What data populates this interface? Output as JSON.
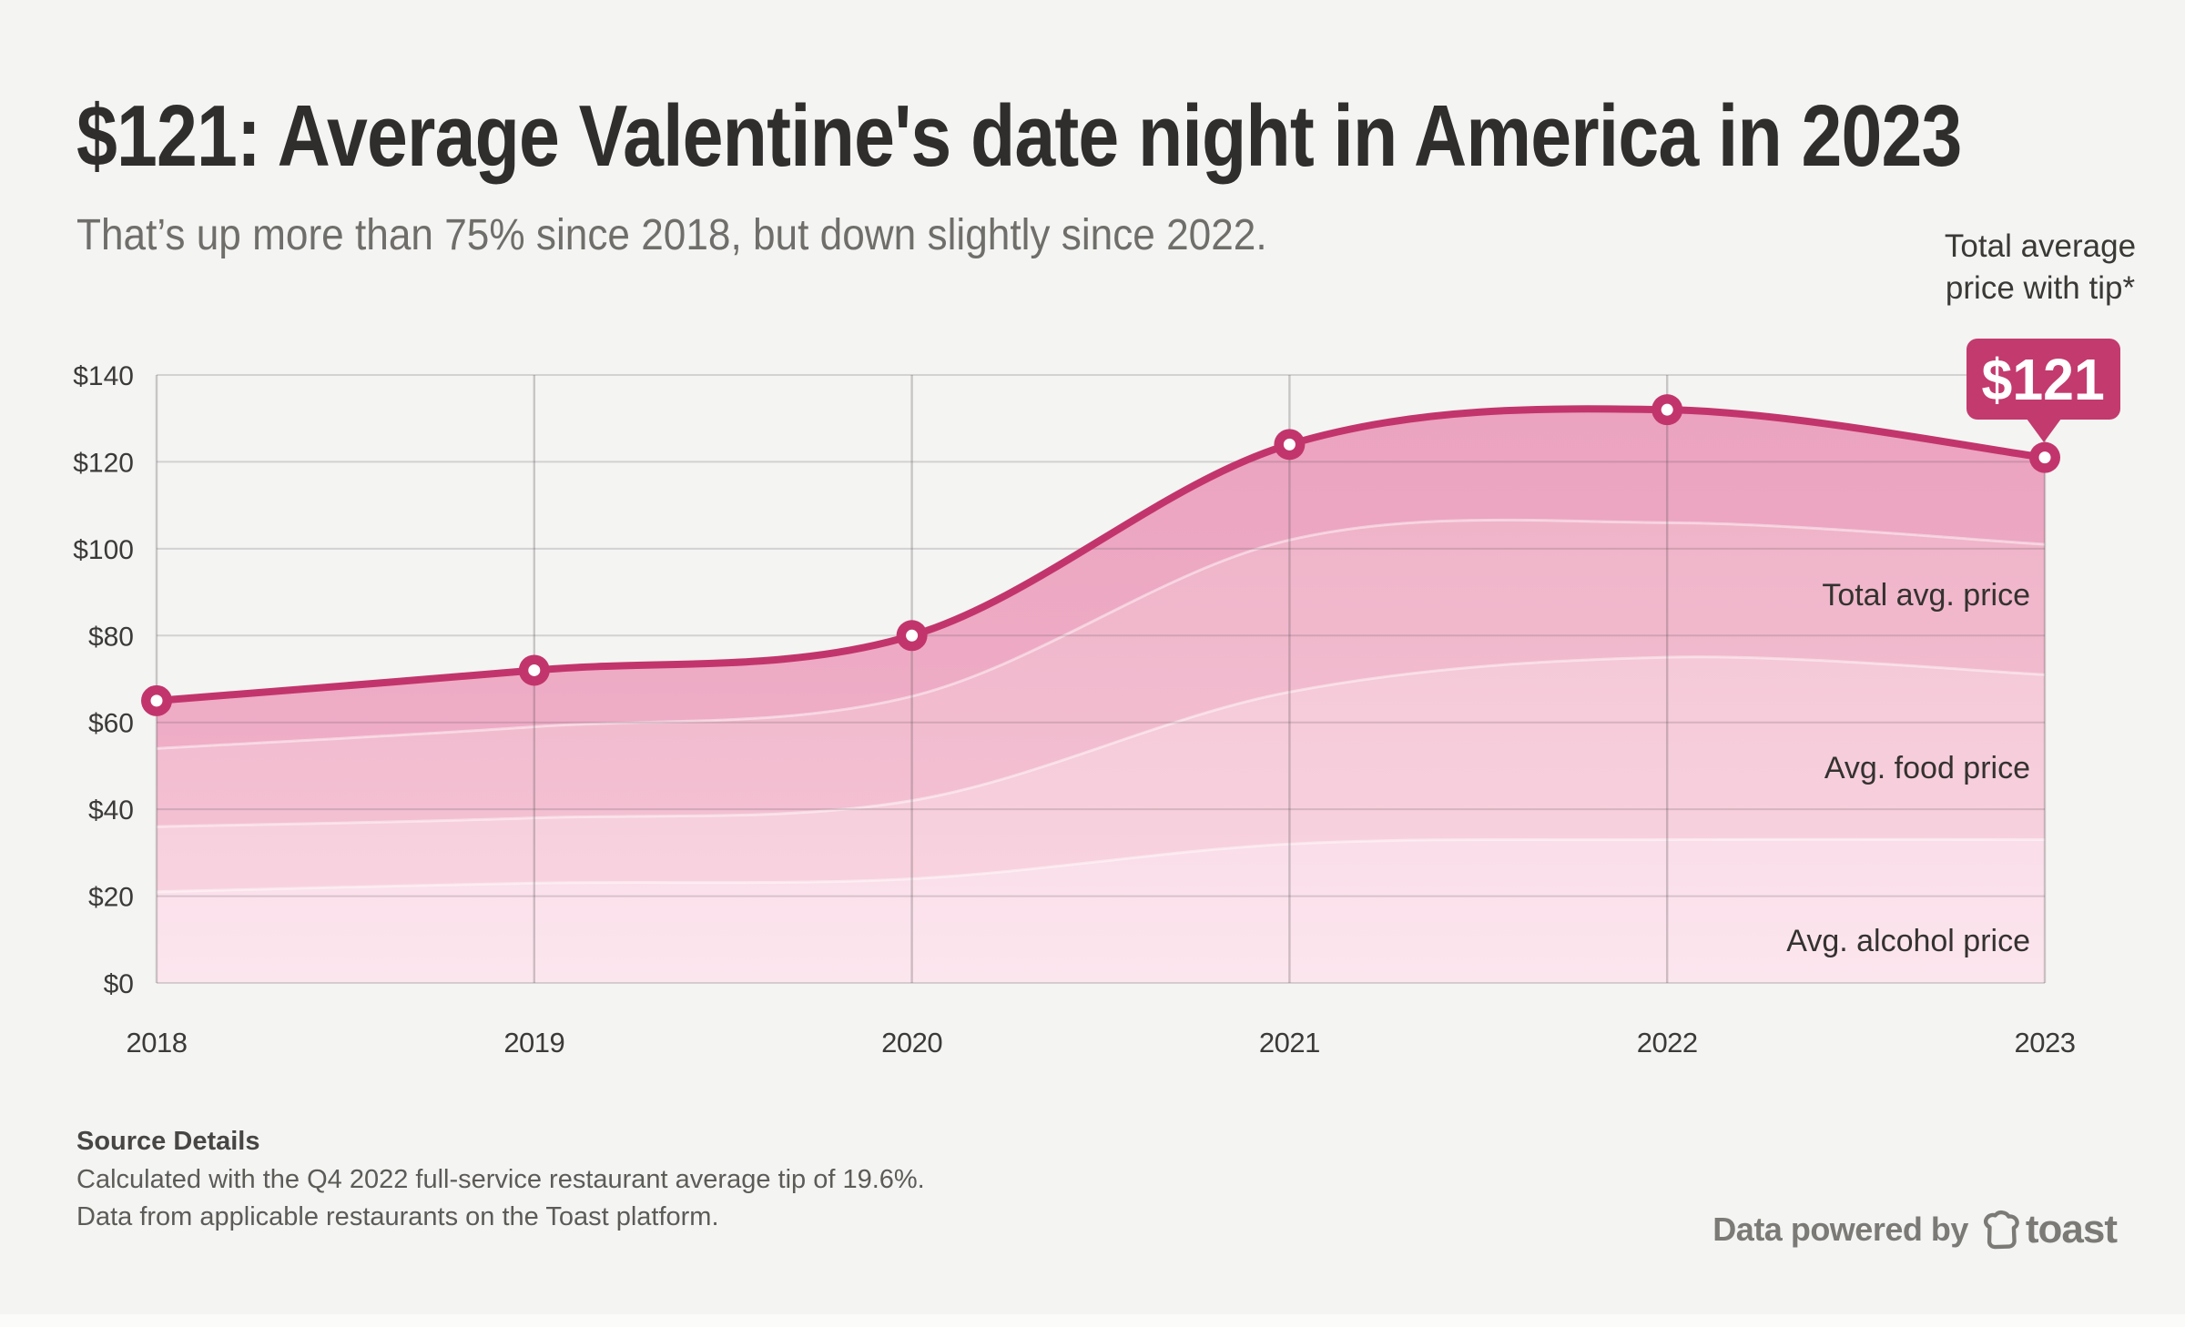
{
  "page": {
    "background": "#f4f4f2"
  },
  "header": {
    "title": "$121: Average Valentine's date night in America in 2023",
    "subtitle": "That’s up more than 75% since 2018, but down slightly since 2022."
  },
  "callout": {
    "annotation": "Total average\nprice with tip*",
    "value": "$121"
  },
  "band_labels": [
    "Total avg. price",
    "Avg. food price",
    "Avg. alcohol price"
  ],
  "chart_data": {
    "type": "area",
    "title": "$121: Average Valentine's date night in America in 2023",
    "x": [
      2018,
      2019,
      2020,
      2021,
      2022,
      2023
    ],
    "x_labels": [
      "2018",
      "2019",
      "2020",
      "2021",
      "2022",
      "2023"
    ],
    "ylim": [
      0,
      140
    ],
    "y_ticks": [
      0,
      20,
      40,
      60,
      80,
      100,
      120,
      140
    ],
    "y_tick_prefix": "$",
    "grid": true,
    "legend_position": "labels-inside-right",
    "series": [
      {
        "name": "Total average price with tip",
        "role": "line-with-markers",
        "values": [
          65,
          72,
          80,
          124,
          132,
          121
        ]
      },
      {
        "name": "Total avg. price",
        "role": "band",
        "values": [
          54,
          59,
          66,
          102,
          106,
          101
        ]
      },
      {
        "name": "Avg. food price",
        "role": "band",
        "values": [
          36,
          38,
          42,
          67,
          75,
          71
        ]
      },
      {
        "name": "Avg. alcohol price",
        "role": "band",
        "values": [
          21,
          23,
          24,
          32,
          33,
          33
        ]
      }
    ],
    "callout": {
      "year": 2023,
      "label": "$121"
    },
    "colors": {
      "line": "#c2356c",
      "badge": "#c33a6e",
      "band1_top": "#eba3bf",
      "band1_bottom": "#efadc6",
      "band2_top": "#f0b4c9",
      "band2_bottom": "#f3c0d2",
      "band3_top": "#f5c9d8",
      "band3_bottom": "#f8d3df",
      "band4_top": "#fadee9",
      "band4_bottom": "#fce6ee",
      "grid_h": "rgba(95,88,92,0.22)",
      "grid_v": "rgba(95,88,92,0.30)"
    }
  },
  "source": {
    "heading": "Source Details",
    "lines": [
      "Calculated with the Q4 2022 full-service restaurant average tip of 19.6%.",
      "Data from applicable restaurants on the Toast platform."
    ]
  },
  "credit": {
    "prefix": "Data powered by",
    "brand": "toast"
  }
}
